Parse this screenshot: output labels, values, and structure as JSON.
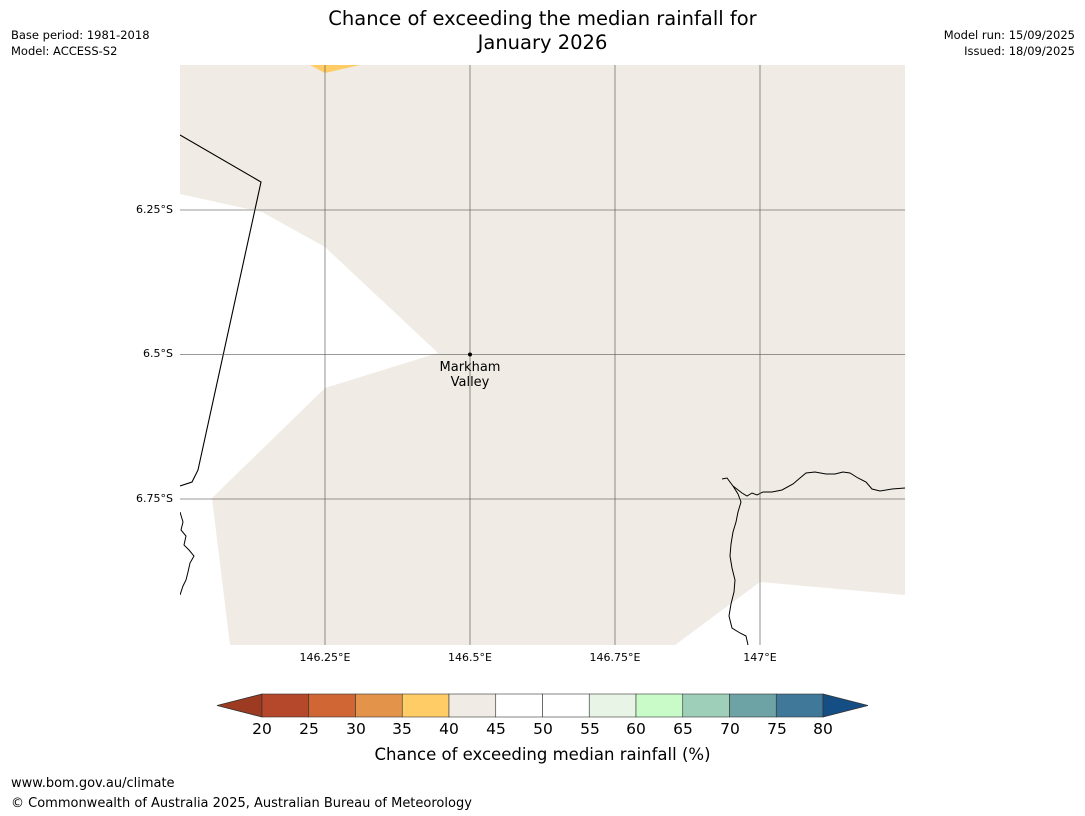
{
  "title": {
    "line1": "Chance of exceeding the median rainfall for",
    "line2": "January 2026"
  },
  "meta_left": {
    "base_period": "Base period: 1981-2018",
    "model": "Model: ACCESS-S2"
  },
  "meta_right": {
    "model_run": "Model run: 15/09/2025",
    "issued": "Issued: 18/09/2025"
  },
  "axes": {
    "lat_ticks": [
      "6.25°S",
      "6.5°S",
      "6.75°S"
    ],
    "lon_ticks": [
      "146.25°E",
      "146.5°E",
      "146.75°E",
      "147°E"
    ]
  },
  "place": {
    "name_line1": "Markham",
    "name_line2": "Valley"
  },
  "legend": {
    "tick_labels": [
      "20",
      "25",
      "30",
      "35",
      "40",
      "45",
      "50",
      "55",
      "60",
      "65",
      "70",
      "75",
      "80"
    ],
    "colors": [
      "#9c3a22",
      "#b5472a",
      "#cf6633",
      "#e3944a",
      "#ffcc66",
      "#f0ebe4",
      "#ffffff",
      "#ffffff",
      "#e8f5e6",
      "#c8fbc8",
      "#9ecfb8",
      "#6ea3a6",
      "#3f7898",
      "#154e85"
    ],
    "label": "Chance of exceeding median rainfall (%)"
  },
  "footer": {
    "url": "www.bom.gov.au/climate",
    "copyright": "© Commonwealth of Australia 2025, Australian Bureau of Meteorology"
  }
}
